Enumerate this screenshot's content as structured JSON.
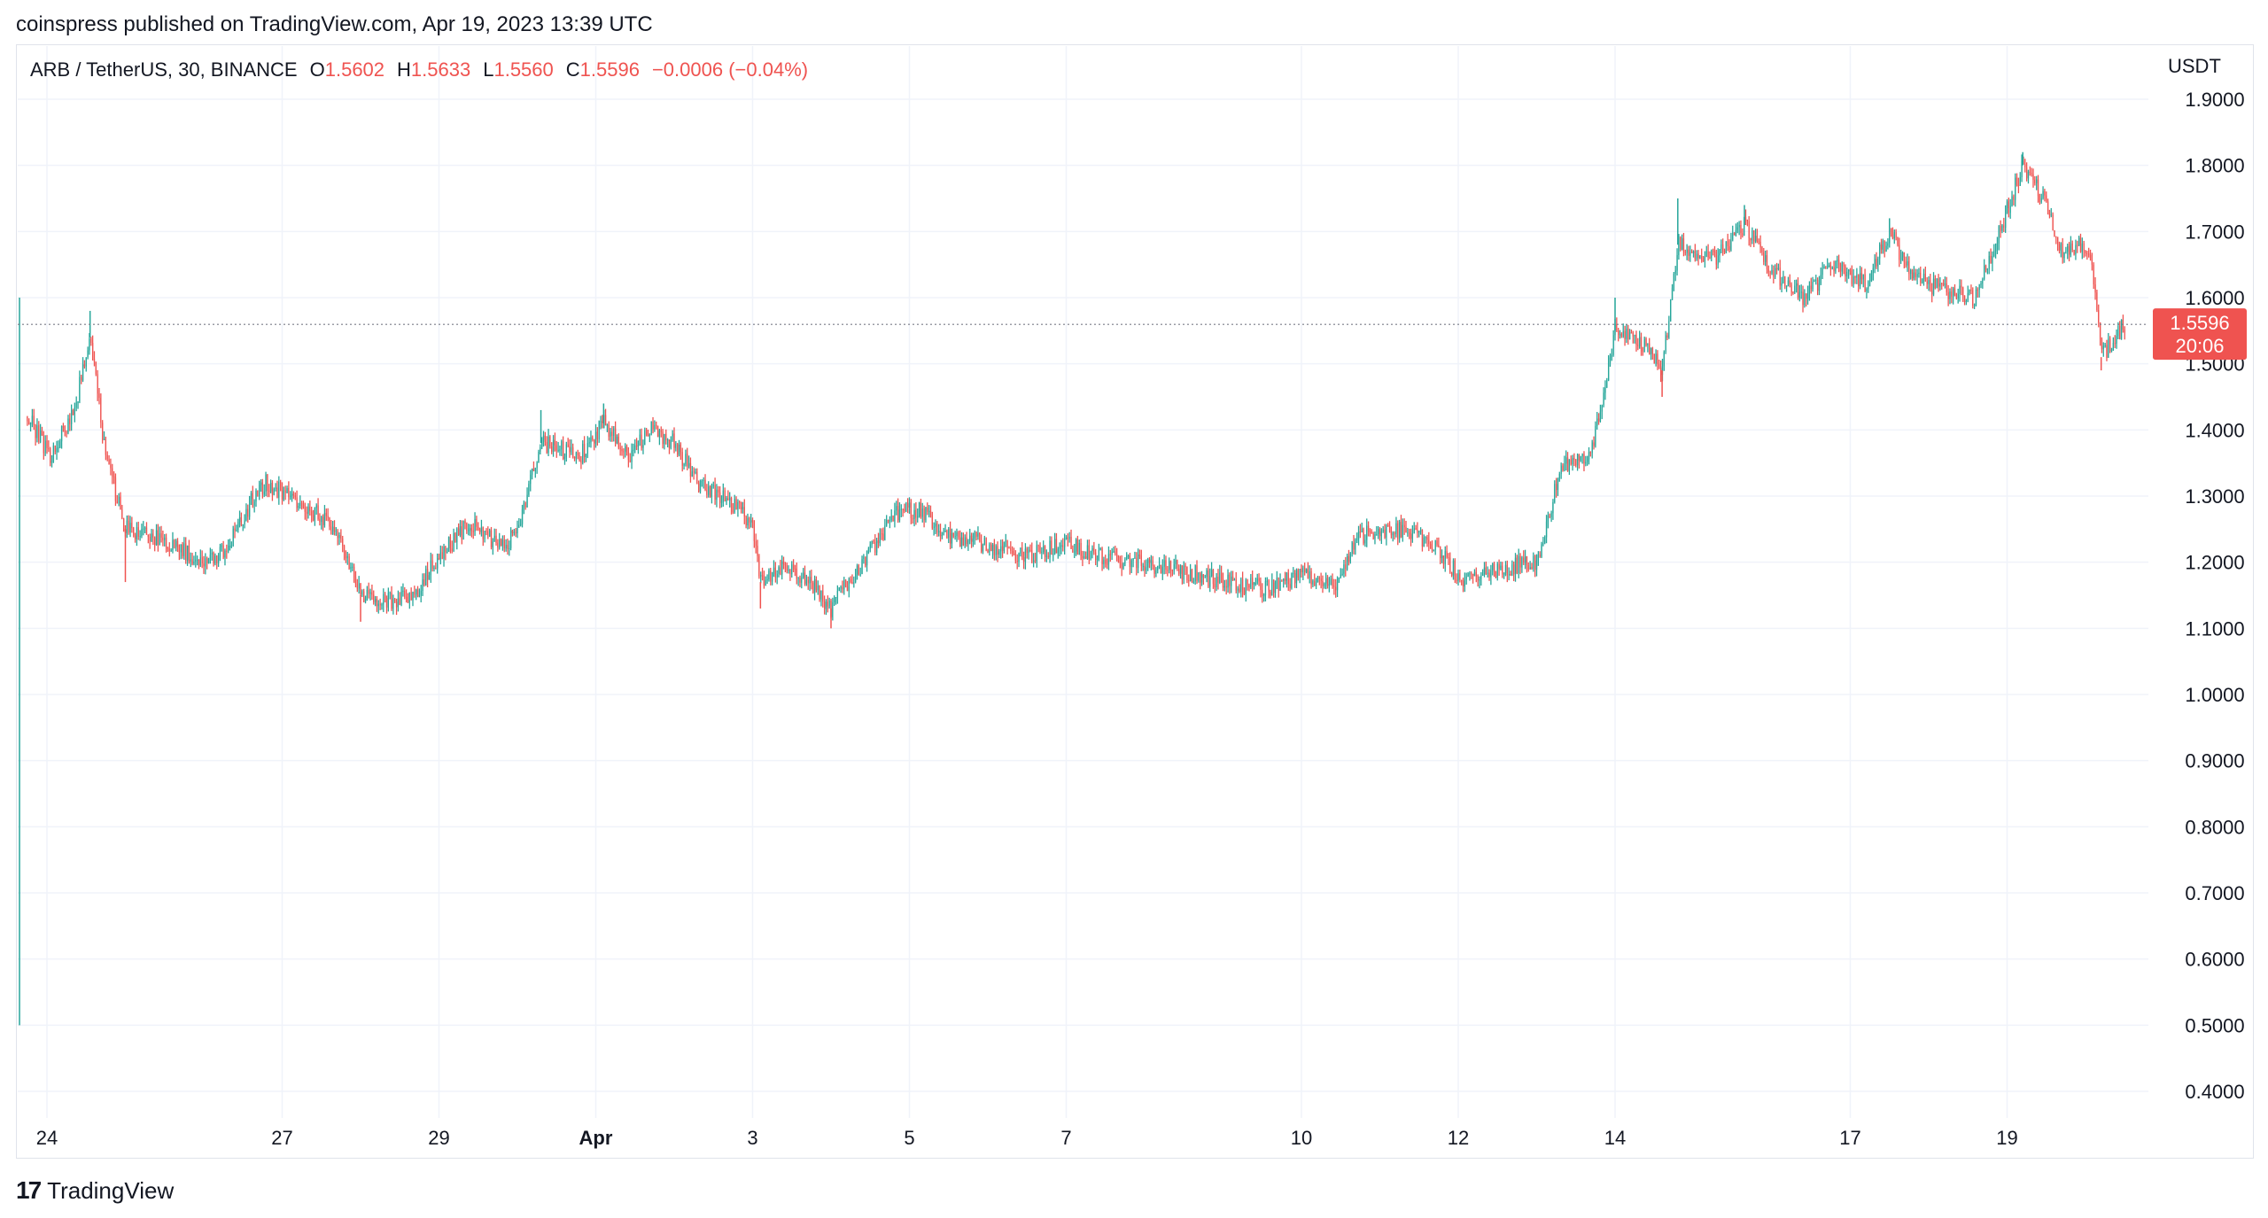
{
  "header": {
    "published": "coinspress published on TradingView.com, Apr 19, 2023 13:39 UTC"
  },
  "legend": {
    "symbol": "ARB / TetherUS, 30, BINANCE",
    "open_label": "O",
    "open": "1.5602",
    "high_label": "H",
    "high": "1.5633",
    "low_label": "L",
    "low": "1.5560",
    "close_label": "C",
    "close": "1.5596",
    "change": "−0.0006 (−0.04%)"
  },
  "price_axis": {
    "unit": "USDT",
    "ticks": [
      "1.9000",
      "1.8000",
      "1.7000",
      "1.6000",
      "1.5000",
      "1.4000",
      "1.3000",
      "1.2000",
      "1.1000",
      "1.0000",
      "0.9000",
      "0.8000",
      "0.7000",
      "0.6000",
      "0.5000",
      "0.4000"
    ]
  },
  "last_price": {
    "price": "1.5596",
    "countdown": "20:06",
    "color": "#ef5350"
  },
  "footer": {
    "brand": "TradingView",
    "logo_mark": "17"
  },
  "colors": {
    "up": "#26a69a",
    "down": "#ef5350",
    "grid": "#f0f3fa",
    "text": "#131722"
  },
  "chart_data": {
    "type": "candlestick",
    "symbol": "ARB / TetherUS",
    "interval": "30",
    "exchange": "BINANCE",
    "ylim": [
      0.38,
      1.93
    ],
    "y_ticks": [
      1.9,
      1.8,
      1.7,
      1.6,
      1.5,
      1.4,
      1.3,
      1.2,
      1.1,
      1.0,
      0.9,
      0.8,
      0.7,
      0.6,
      0.5,
      0.4
    ],
    "x_tick_labels": [
      "24",
      "27",
      "29",
      "Apr",
      "3",
      "5",
      "7",
      "10",
      "12",
      "14",
      "17",
      "19"
    ],
    "x_tick_days": [
      0,
      3,
      5,
      7,
      9,
      11,
      13,
      16,
      18,
      20,
      23,
      25
    ],
    "price_path": [
      {
        "day": -0.35,
        "price": 0.5,
        "low": 0.5,
        "high": 1.6
      },
      {
        "day": -0.25,
        "price": 1.42
      },
      {
        "day": 0.05,
        "price": 1.36
      },
      {
        "day": 0.35,
        "price": 1.43
      },
      {
        "day": 0.55,
        "price": 1.54,
        "high": 1.58
      },
      {
        "day": 0.75,
        "price": 1.36
      },
      {
        "day": 1.0,
        "price": 1.25,
        "low": 1.17
      },
      {
        "day": 1.3,
        "price": 1.24
      },
      {
        "day": 1.7,
        "price": 1.22
      },
      {
        "day": 2.0,
        "price": 1.2
      },
      {
        "day": 2.3,
        "price": 1.22
      },
      {
        "day": 2.6,
        "price": 1.29
      },
      {
        "day": 2.8,
        "price": 1.32
      },
      {
        "day": 3.2,
        "price": 1.29
      },
      {
        "day": 3.5,
        "price": 1.27
      },
      {
        "day": 3.8,
        "price": 1.22
      },
      {
        "day": 4.0,
        "price": 1.15,
        "low": 1.11
      },
      {
        "day": 4.3,
        "price": 1.14
      },
      {
        "day": 4.7,
        "price": 1.15
      },
      {
        "day": 5.0,
        "price": 1.21
      },
      {
        "day": 5.4,
        "price": 1.26
      },
      {
        "day": 5.8,
        "price": 1.22
      },
      {
        "day": 6.0,
        "price": 1.25
      },
      {
        "day": 6.3,
        "price": 1.38,
        "high": 1.43
      },
      {
        "day": 6.8,
        "price": 1.36
      },
      {
        "day": 7.1,
        "price": 1.41,
        "high": 1.44
      },
      {
        "day": 7.4,
        "price": 1.36
      },
      {
        "day": 7.7,
        "price": 1.4
      },
      {
        "day": 8.0,
        "price": 1.38
      },
      {
        "day": 8.3,
        "price": 1.32
      },
      {
        "day": 8.6,
        "price": 1.3
      },
      {
        "day": 9.0,
        "price": 1.26
      },
      {
        "day": 9.1,
        "price": 1.17,
        "low": 1.13
      },
      {
        "day": 9.4,
        "price": 1.2
      },
      {
        "day": 9.8,
        "price": 1.16
      },
      {
        "day": 10.0,
        "price": 1.13,
        "low": 1.1
      },
      {
        "day": 10.4,
        "price": 1.2
      },
      {
        "day": 10.8,
        "price": 1.27
      },
      {
        "day": 11.1,
        "price": 1.28
      },
      {
        "day": 11.5,
        "price": 1.24
      },
      {
        "day": 11.9,
        "price": 1.23
      },
      {
        "day": 12.2,
        "price": 1.22
      },
      {
        "day": 12.5,
        "price": 1.21
      },
      {
        "day": 13.0,
        "price": 1.23
      },
      {
        "day": 13.3,
        "price": 1.21
      },
      {
        "day": 13.8,
        "price": 1.2
      },
      {
        "day": 14.4,
        "price": 1.19
      },
      {
        "day": 15.0,
        "price": 1.17
      },
      {
        "day": 15.6,
        "price": 1.16
      },
      {
        "day": 16.0,
        "price": 1.18
      },
      {
        "day": 16.5,
        "price": 1.17
      },
      {
        "day": 16.7,
        "price": 1.24
      },
      {
        "day": 17.2,
        "price": 1.25
      },
      {
        "day": 17.7,
        "price": 1.23
      },
      {
        "day": 18.05,
        "price": 1.17
      },
      {
        "day": 18.5,
        "price": 1.19
      },
      {
        "day": 19.0,
        "price": 1.2
      },
      {
        "day": 19.3,
        "price": 1.34
      },
      {
        "day": 19.7,
        "price": 1.37
      },
      {
        "day": 20.0,
        "price": 1.55,
        "high": 1.6
      },
      {
        "day": 20.3,
        "price": 1.54
      },
      {
        "day": 20.6,
        "price": 1.49,
        "low": 1.45
      },
      {
        "day": 20.8,
        "price": 1.68,
        "high": 1.75
      },
      {
        "day": 21.3,
        "price": 1.66
      },
      {
        "day": 21.65,
        "price": 1.71,
        "high": 1.74
      },
      {
        "day": 22.0,
        "price": 1.64
      },
      {
        "day": 22.4,
        "price": 1.6
      },
      {
        "day": 22.8,
        "price": 1.65
      },
      {
        "day": 23.2,
        "price": 1.62
      },
      {
        "day": 23.5,
        "price": 1.7,
        "high": 1.72
      },
      {
        "day": 23.8,
        "price": 1.63
      },
      {
        "day": 24.2,
        "price": 1.61
      },
      {
        "day": 24.6,
        "price": 1.6
      },
      {
        "day": 24.9,
        "price": 1.7
      },
      {
        "day": 25.2,
        "price": 1.8,
        "high": 1.82
      },
      {
        "day": 25.5,
        "price": 1.74
      },
      {
        "day": 25.7,
        "price": 1.67
      },
      {
        "day": 26.0,
        "price": 1.68
      },
      {
        "day": 26.1,
        "price": 1.63
      },
      {
        "day": 26.2,
        "price": 1.51,
        "low": 1.49
      },
      {
        "day": 26.5,
        "price": 1.5596
      }
    ]
  }
}
